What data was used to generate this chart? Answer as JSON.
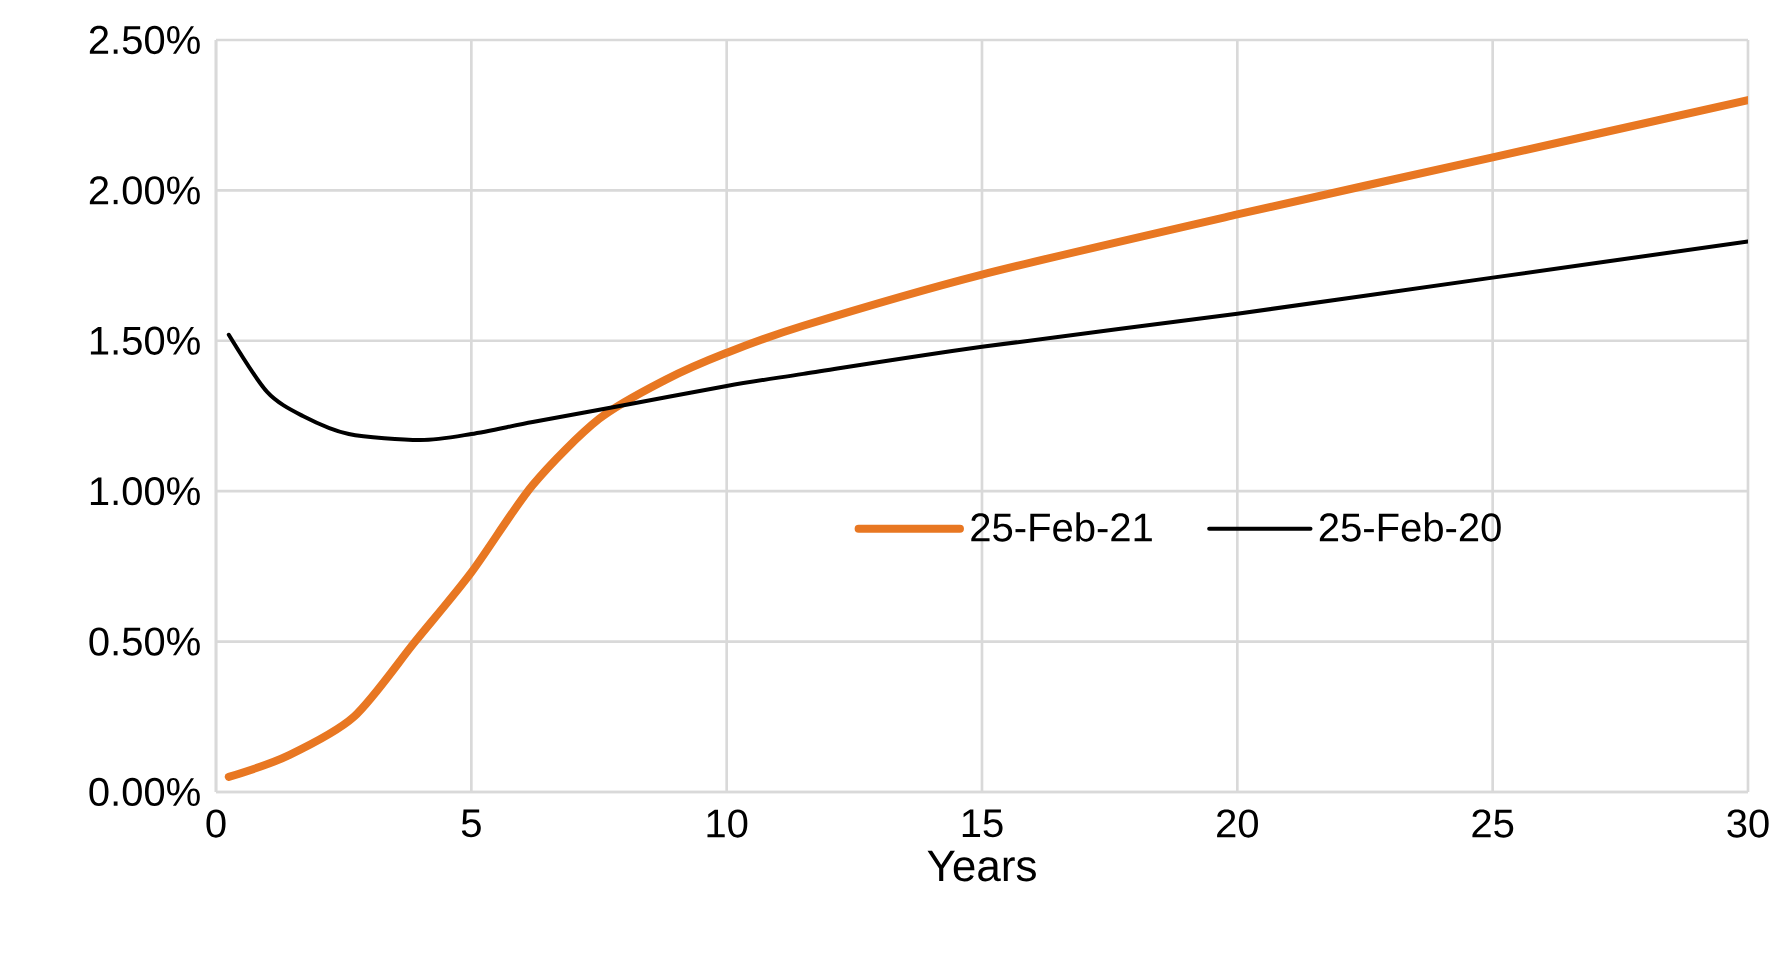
{
  "chart_data": {
    "type": "line",
    "xlabel": "Years",
    "xlim": [
      0,
      30
    ],
    "xticks": [
      0,
      5,
      10,
      15,
      20,
      25,
      30
    ],
    "ylim": [
      0,
      2.5
    ],
    "yticks": [
      {
        "value": 0,
        "label": "0.00%"
      },
      {
        "value": 0.5,
        "label": "0.50%"
      },
      {
        "value": 1,
        "label": "1.00%"
      },
      {
        "value": 1.5,
        "label": "1.50%"
      },
      {
        "value": 2,
        "label": "2.00%"
      },
      {
        "value": 2.5,
        "label": "2.50%"
      }
    ],
    "grid": true,
    "legend": "center right",
    "line_style": "solid",
    "series": [
      {
        "name": "25-Feb-21",
        "color": "#e87722",
        "x": [
          0.25,
          1.4,
          2.7,
          3.9,
          5,
          6.2,
          7.5,
          8.8,
          10,
          11.5,
          15,
          20,
          25,
          30
        ],
        "values": [
          0.05,
          0.12,
          0.25,
          0.5,
          0.73,
          1.02,
          1.24,
          1.37,
          1.46,
          1.55,
          1.72,
          1.92,
          2.11,
          2.3
        ]
      },
      {
        "name": "25-Feb-20",
        "color": "#000000",
        "x": [
          0.25,
          1,
          1.7,
          2.6,
          4,
          5,
          6.2,
          7.8,
          10,
          11.5,
          15,
          20,
          25,
          30
        ],
        "values": [
          1.52,
          1.33,
          1.25,
          1.19,
          1.17,
          1.19,
          1.23,
          1.28,
          1.35,
          1.39,
          1.48,
          1.59,
          1.71,
          1.83
        ]
      }
    ]
  }
}
